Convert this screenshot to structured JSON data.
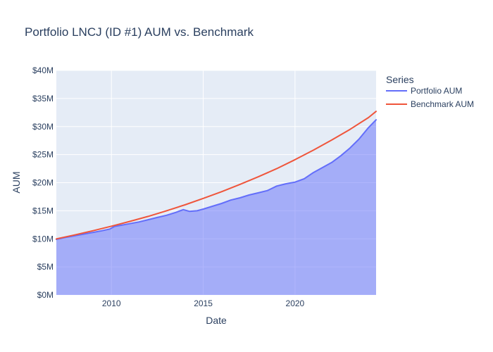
{
  "chart_data": {
    "type": "line",
    "title": "Portfolio LNCJ (ID #1) AUM vs. Benchmark",
    "xlabel": "Date",
    "ylabel": "AUM",
    "x_range": [
      "2007-01-01",
      "2024-06-01"
    ],
    "ylim": [
      0,
      40000000
    ],
    "x_ticks": [
      {
        "date": "2010-01-01",
        "label": "2010"
      },
      {
        "date": "2015-01-01",
        "label": "2015"
      },
      {
        "date": "2020-01-01",
        "label": "2020"
      }
    ],
    "y_ticks": [
      {
        "value": 0,
        "label": "$0M"
      },
      {
        "value": 5000000,
        "label": "$5M"
      },
      {
        "value": 10000000,
        "label": "$10M"
      },
      {
        "value": 15000000,
        "label": "$15M"
      },
      {
        "value": 20000000,
        "label": "$20M"
      },
      {
        "value": 25000000,
        "label": "$25M"
      },
      {
        "value": 30000000,
        "label": "$30M"
      },
      {
        "value": 35000000,
        "label": "$35M"
      },
      {
        "value": 40000000,
        "label": "$40M"
      }
    ],
    "grid": true,
    "legend": {
      "title": "Series",
      "placement": "right"
    },
    "series": [
      {
        "name": "Portfolio AUM",
        "color": "#636efa",
        "fill": "tozeroy",
        "points": [
          {
            "x": "2007-01-01",
            "y": 9900000
          },
          {
            "x": "2007-07-01",
            "y": 10250000
          },
          {
            "x": "2008-01-01",
            "y": 10550000
          },
          {
            "x": "2008-07-01",
            "y": 10850000
          },
          {
            "x": "2009-01-01",
            "y": 11150000
          },
          {
            "x": "2009-07-01",
            "y": 11450000
          },
          {
            "x": "2009-12-01",
            "y": 11750000
          },
          {
            "x": "2010-03-01",
            "y": 12200000
          },
          {
            "x": "2010-07-01",
            "y": 12400000
          },
          {
            "x": "2011-01-01",
            "y": 12700000
          },
          {
            "x": "2011-07-01",
            "y": 13000000
          },
          {
            "x": "2012-01-01",
            "y": 13400000
          },
          {
            "x": "2012-07-01",
            "y": 13800000
          },
          {
            "x": "2013-01-01",
            "y": 14200000
          },
          {
            "x": "2013-07-01",
            "y": 14700000
          },
          {
            "x": "2013-12-01",
            "y": 15200000
          },
          {
            "x": "2014-04-01",
            "y": 14900000
          },
          {
            "x": "2014-09-01",
            "y": 15000000
          },
          {
            "x": "2015-01-01",
            "y": 15300000
          },
          {
            "x": "2015-07-01",
            "y": 15800000
          },
          {
            "x": "2016-01-01",
            "y": 16300000
          },
          {
            "x": "2016-07-01",
            "y": 16900000
          },
          {
            "x": "2017-01-01",
            "y": 17300000
          },
          {
            "x": "2017-07-01",
            "y": 17800000
          },
          {
            "x": "2018-01-01",
            "y": 18200000
          },
          {
            "x": "2018-07-01",
            "y": 18600000
          },
          {
            "x": "2019-01-01",
            "y": 19400000
          },
          {
            "x": "2019-07-01",
            "y": 19800000
          },
          {
            "x": "2020-01-01",
            "y": 20100000
          },
          {
            "x": "2020-07-01",
            "y": 20700000
          },
          {
            "x": "2021-01-01",
            "y": 21800000
          },
          {
            "x": "2021-07-01",
            "y": 22700000
          },
          {
            "x": "2022-01-01",
            "y": 23600000
          },
          {
            "x": "2022-07-01",
            "y": 24800000
          },
          {
            "x": "2023-01-01",
            "y": 26200000
          },
          {
            "x": "2023-07-01",
            "y": 27800000
          },
          {
            "x": "2024-01-01",
            "y": 29800000
          },
          {
            "x": "2024-06-01",
            "y": 31200000
          }
        ]
      },
      {
        "name": "Benchmark AUM",
        "color": "#ef553b",
        "fill": "none",
        "points": [
          {
            "x": "2007-01-01",
            "y": 10000000
          },
          {
            "x": "2008-01-01",
            "y": 10700000
          },
          {
            "x": "2009-01-01",
            "y": 11450000
          },
          {
            "x": "2010-01-01",
            "y": 12250000
          },
          {
            "x": "2011-01-01",
            "y": 13100000
          },
          {
            "x": "2012-01-01",
            "y": 14000000
          },
          {
            "x": "2013-01-01",
            "y": 15000000
          },
          {
            "x": "2014-01-01",
            "y": 16050000
          },
          {
            "x": "2015-01-01",
            "y": 17200000
          },
          {
            "x": "2016-01-01",
            "y": 18400000
          },
          {
            "x": "2017-01-01",
            "y": 19700000
          },
          {
            "x": "2018-01-01",
            "y": 21050000
          },
          {
            "x": "2019-01-01",
            "y": 22500000
          },
          {
            "x": "2020-01-01",
            "y": 24100000
          },
          {
            "x": "2021-01-01",
            "y": 25800000
          },
          {
            "x": "2022-01-01",
            "y": 27600000
          },
          {
            "x": "2023-01-01",
            "y": 29500000
          },
          {
            "x": "2024-01-01",
            "y": 31600000
          },
          {
            "x": "2024-06-01",
            "y": 32700000
          }
        ]
      }
    ]
  }
}
